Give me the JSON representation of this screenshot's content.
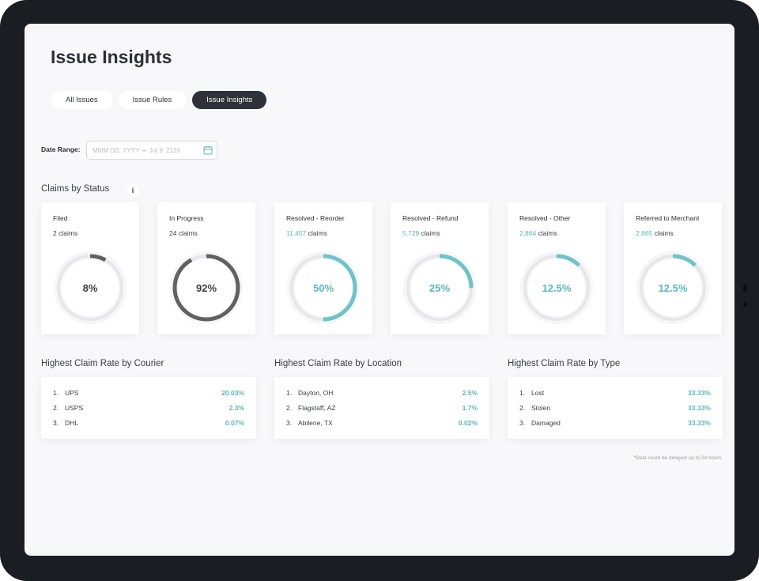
{
  "page": {
    "title": "Issue Insights"
  },
  "tabs": [
    {
      "label": "All Issues",
      "active": false
    },
    {
      "label": "Issue Rules",
      "active": false
    },
    {
      "label": "Issue Insights",
      "active": true
    }
  ],
  "date_range": {
    "label": "Date Range:",
    "start_placeholder": "MMM DD, YYYY",
    "separator": "–",
    "end_value": "Jul 9, 2126"
  },
  "claims_by_status": {
    "title": "Claims by Status",
    "info": "i",
    "cards": [
      {
        "title": "Filed",
        "count": "2",
        "unit": "claims",
        "percent_label": "8%",
        "fraction": 0.08,
        "color": "#616161",
        "count_teal": false
      },
      {
        "title": "In Progress",
        "count": "24",
        "unit": "claims",
        "percent_label": "92%",
        "fraction": 0.92,
        "color": "#616161",
        "count_teal": false
      },
      {
        "title": "Resolved - Reorder",
        "count": "11,457",
        "unit": "claims",
        "percent_label": "50%",
        "fraction": 0.5,
        "color": "#6cc3c8",
        "count_teal": true
      },
      {
        "title": "Resolved - Refund",
        "count": "5,729",
        "unit": "claims",
        "percent_label": "25%",
        "fraction": 0.25,
        "color": "#6cc3c8",
        "count_teal": true
      },
      {
        "title": "Resolved - Other",
        "count": "2,864",
        "unit": "claims",
        "percent_label": "12.5%",
        "fraction": 0.125,
        "color": "#6cc3c8",
        "count_teal": true
      },
      {
        "title": "Referred to Merchant",
        "count": "2,865",
        "unit": "claims",
        "percent_label": "12.5%",
        "fraction": 0.125,
        "color": "#6cc3c8",
        "count_teal": true
      }
    ]
  },
  "rankings": [
    {
      "title": "Highest Claim Rate by Courier",
      "rows": [
        {
          "rank": "1.",
          "name": "UPS",
          "value": "20.03%"
        },
        {
          "rank": "2.",
          "name": "USPS",
          "value": "2.3%"
        },
        {
          "rank": "3.",
          "name": "DHL",
          "value": "0.07%"
        }
      ]
    },
    {
      "title": "Highest Claim Rate by Location",
      "rows": [
        {
          "rank": "1.",
          "name": "Dayton, OH",
          "value": "2.5%"
        },
        {
          "rank": "2.",
          "name": "Flagstaff, AZ",
          "value": "1.7%"
        },
        {
          "rank": "3.",
          "name": "Abilene, TX",
          "value": "0.02%"
        }
      ]
    },
    {
      "title": "Highest Claim Rate by Type",
      "rows": [
        {
          "rank": "1.",
          "name": "Lost",
          "value": "33.33%"
        },
        {
          "rank": "2.",
          "name": "Stolen",
          "value": "33.33%"
        },
        {
          "rank": "3.",
          "name": "Damaged",
          "value": "33.33%"
        }
      ]
    }
  ],
  "footnote": "*Data could be delayed up to 24 hours.",
  "colors": {
    "accent_teal": "#6cc3c8",
    "dark_ring": "#616161",
    "track": "#e6e7ea",
    "tab_active_bg": "#2e3138"
  },
  "icons": {
    "calendar": "calendar-icon",
    "info": "info-icon"
  }
}
